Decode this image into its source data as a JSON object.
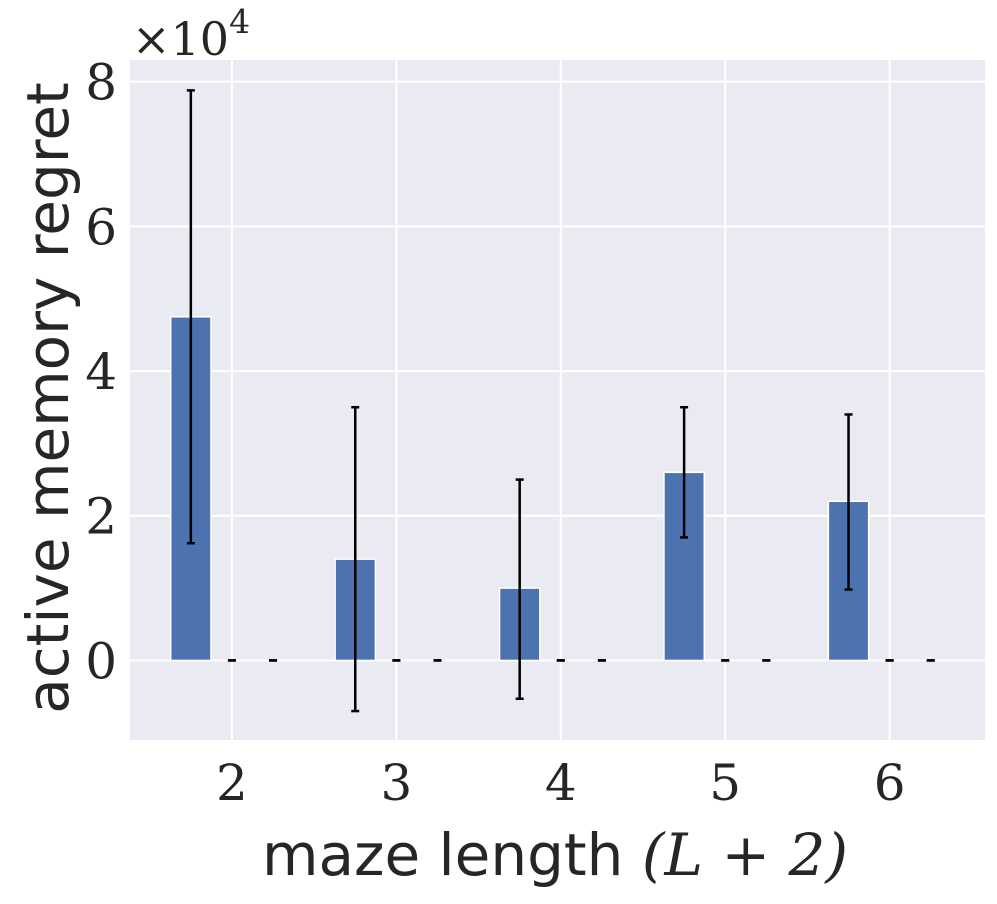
{
  "chart_data": {
    "type": "bar",
    "xlabel_text": "maze length ",
    "xlabel_math": "(L + 2)",
    "ylabel": "active memory regret",
    "y_multiplier": "×10",
    "y_multiplier_exp": "4",
    "categories": [
      "2",
      "3",
      "4",
      "5",
      "6"
    ],
    "xlim": [
      1.38,
      6.58
    ],
    "ylim": [
      -11000,
      83000
    ],
    "yticks": [
      0,
      20000,
      40000,
      60000,
      80000
    ],
    "ytick_labels": [
      "0",
      "2",
      "4",
      "6",
      "8"
    ],
    "xticks": [
      2,
      3,
      4,
      5,
      6
    ],
    "grid": true,
    "bar_color": "#4c72b0",
    "background_color": "#eaeaf2",
    "series": [
      {
        "x": [
          1.75,
          2.75,
          3.75,
          4.75,
          5.75
        ],
        "values": [
          47500,
          14000,
          10000,
          26000,
          22000
        ],
        "err_low": [
          16200,
          -7000,
          -5300,
          17000,
          9800
        ],
        "err_high": [
          78800,
          35000,
          25000,
          35000,
          34000
        ]
      },
      {
        "x": [
          2.0,
          3.0,
          4.0,
          5.0,
          6.0
        ],
        "values": [
          0,
          0,
          0,
          0,
          0
        ],
        "err_low": [
          0,
          0,
          0,
          0,
          0
        ],
        "err_high": [
          0,
          0,
          0,
          0,
          0
        ]
      },
      {
        "x": [
          2.25,
          3.25,
          4.25,
          5.25,
          6.25
        ],
        "values": [
          0,
          0,
          0,
          0,
          0
        ],
        "err_low": [
          0,
          0,
          0,
          0,
          0
        ],
        "err_high": [
          0,
          0,
          0,
          0,
          0
        ]
      }
    ]
  }
}
